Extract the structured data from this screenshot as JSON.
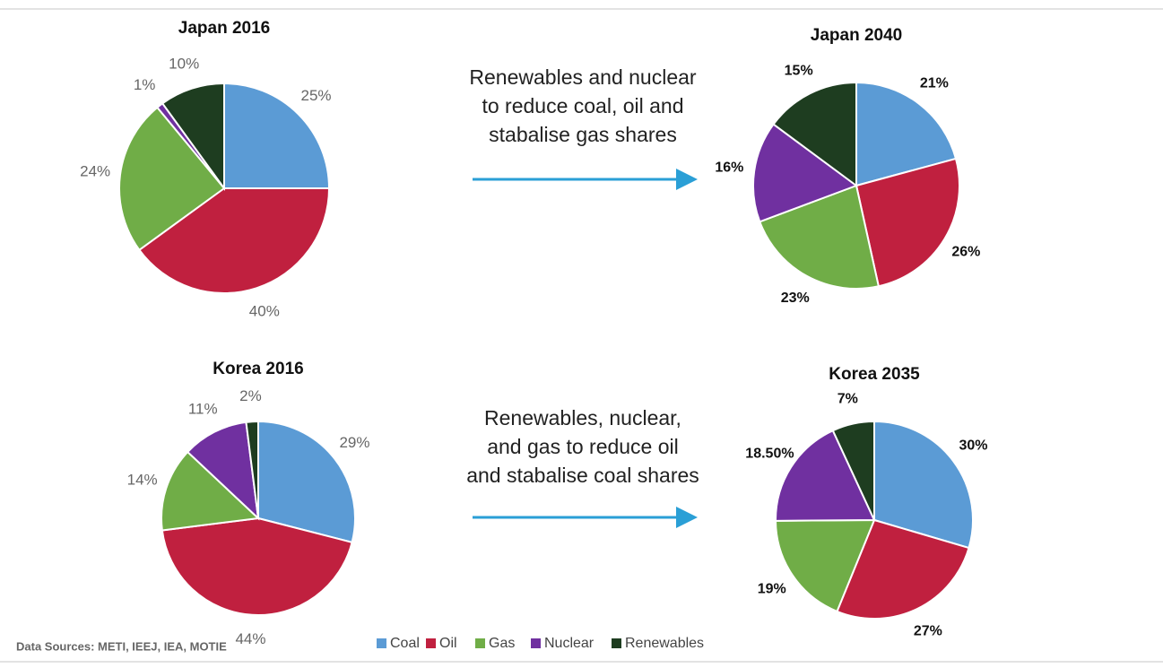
{
  "chart_data": [
    {
      "type": "pie",
      "title": "Japan 2016",
      "categories": [
        "Coal",
        "Oil",
        "Gas",
        "Nuclear",
        "Renewables"
      ],
      "values": [
        25,
        40,
        24,
        1,
        10
      ],
      "value_labels": [
        "25%",
        "40%",
        "24%",
        "1%",
        "10%"
      ],
      "colors": [
        "#5b9bd5",
        "#c0203f",
        "#70ad47",
        "#7030a0",
        "#1e3d20"
      ]
    },
    {
      "type": "pie",
      "title": "Japan  2040",
      "categories": [
        "Coal",
        "Oil",
        "Gas",
        "Nuclear",
        "Renewables"
      ],
      "values": [
        21,
        26,
        23,
        16,
        15
      ],
      "value_labels": [
        "21%",
        "26%",
        "23%",
        "16%",
        "15%"
      ],
      "colors": [
        "#5b9bd5",
        "#c0203f",
        "#70ad47",
        "#7030a0",
        "#1e3d20"
      ]
    },
    {
      "type": "pie",
      "title": "Korea 2016",
      "categories": [
        "Coal",
        "Oil",
        "Gas",
        "Nuclear",
        "Renewables"
      ],
      "values": [
        29,
        44,
        14,
        11,
        2
      ],
      "value_labels": [
        "29%",
        "44%",
        "14%",
        "11%",
        "2%"
      ],
      "colors": [
        "#5b9bd5",
        "#c0203f",
        "#70ad47",
        "#7030a0",
        "#1e3d20"
      ]
    },
    {
      "type": "pie",
      "title": "Korea 2035",
      "categories": [
        "Coal",
        "Oil",
        "Gas",
        "Nuclear",
        "Renewables"
      ],
      "values": [
        30,
        27,
        19,
        18.5,
        7
      ],
      "value_labels": [
        "30%",
        "27%",
        "19%",
        "18.50%",
        "7%"
      ],
      "colors": [
        "#5b9bd5",
        "#c0203f",
        "#70ad47",
        "#7030a0",
        "#1e3d20"
      ]
    }
  ],
  "annotations": [
    {
      "lines": [
        "Renewables and nuclear",
        "to reduce coal, oil and",
        "stabalise gas shares"
      ]
    },
    {
      "lines": [
        "Renewables, nuclear,",
        "and gas to reduce oil",
        "and stabalise coal shares"
      ]
    }
  ],
  "source": "Data Sources: METI, IEEJ, IEA, MOTIE"
}
